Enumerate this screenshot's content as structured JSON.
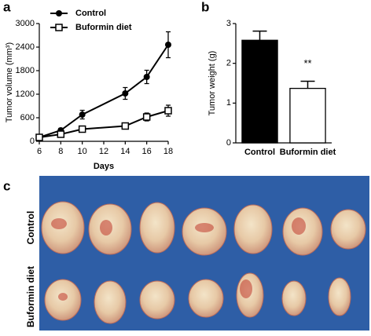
{
  "panel_labels": [
    "a",
    "b",
    "c"
  ],
  "photo": {
    "row_labels": [
      "Control",
      "Buformin diet"
    ]
  },
  "chart_data": [
    {
      "type": "line",
      "x_label": "Days",
      "y_label": "Tumor volume (mm³)",
      "x": [
        6,
        8,
        10,
        14,
        16,
        18
      ],
      "xlim": [
        6,
        18
      ],
      "xticks": [
        6,
        8,
        10,
        12,
        14,
        16,
        18
      ],
      "ylim": [
        0,
        3000
      ],
      "yticks": [
        0,
        600,
        1200,
        1800,
        2400,
        3000
      ],
      "legend": "top-left",
      "series": [
        {
          "name": "Control",
          "color": "#000000",
          "marker": "filled-circle",
          "values": [
            100,
            280,
            680,
            1220,
            1640,
            2460
          ],
          "errors": [
            30,
            50,
            110,
            150,
            170,
            330
          ]
        },
        {
          "name": "Buformin diet",
          "color": "#000000",
          "marker": "open-square",
          "values": [
            100,
            180,
            310,
            390,
            620,
            780
          ],
          "errors": [
            20,
            30,
            50,
            60,
            100,
            140
          ]
        }
      ]
    },
    {
      "type": "bar",
      "y_label": "Tumor weight (g)",
      "categories": [
        "Control",
        "Buformin diet"
      ],
      "values": [
        2.58,
        1.37
      ],
      "errors": [
        0.23,
        0.18
      ],
      "colors": [
        "#000000",
        "#ffffff"
      ],
      "ylim": [
        0,
        3
      ],
      "yticks": [
        0,
        1,
        2,
        3
      ],
      "annotation": "**"
    }
  ]
}
